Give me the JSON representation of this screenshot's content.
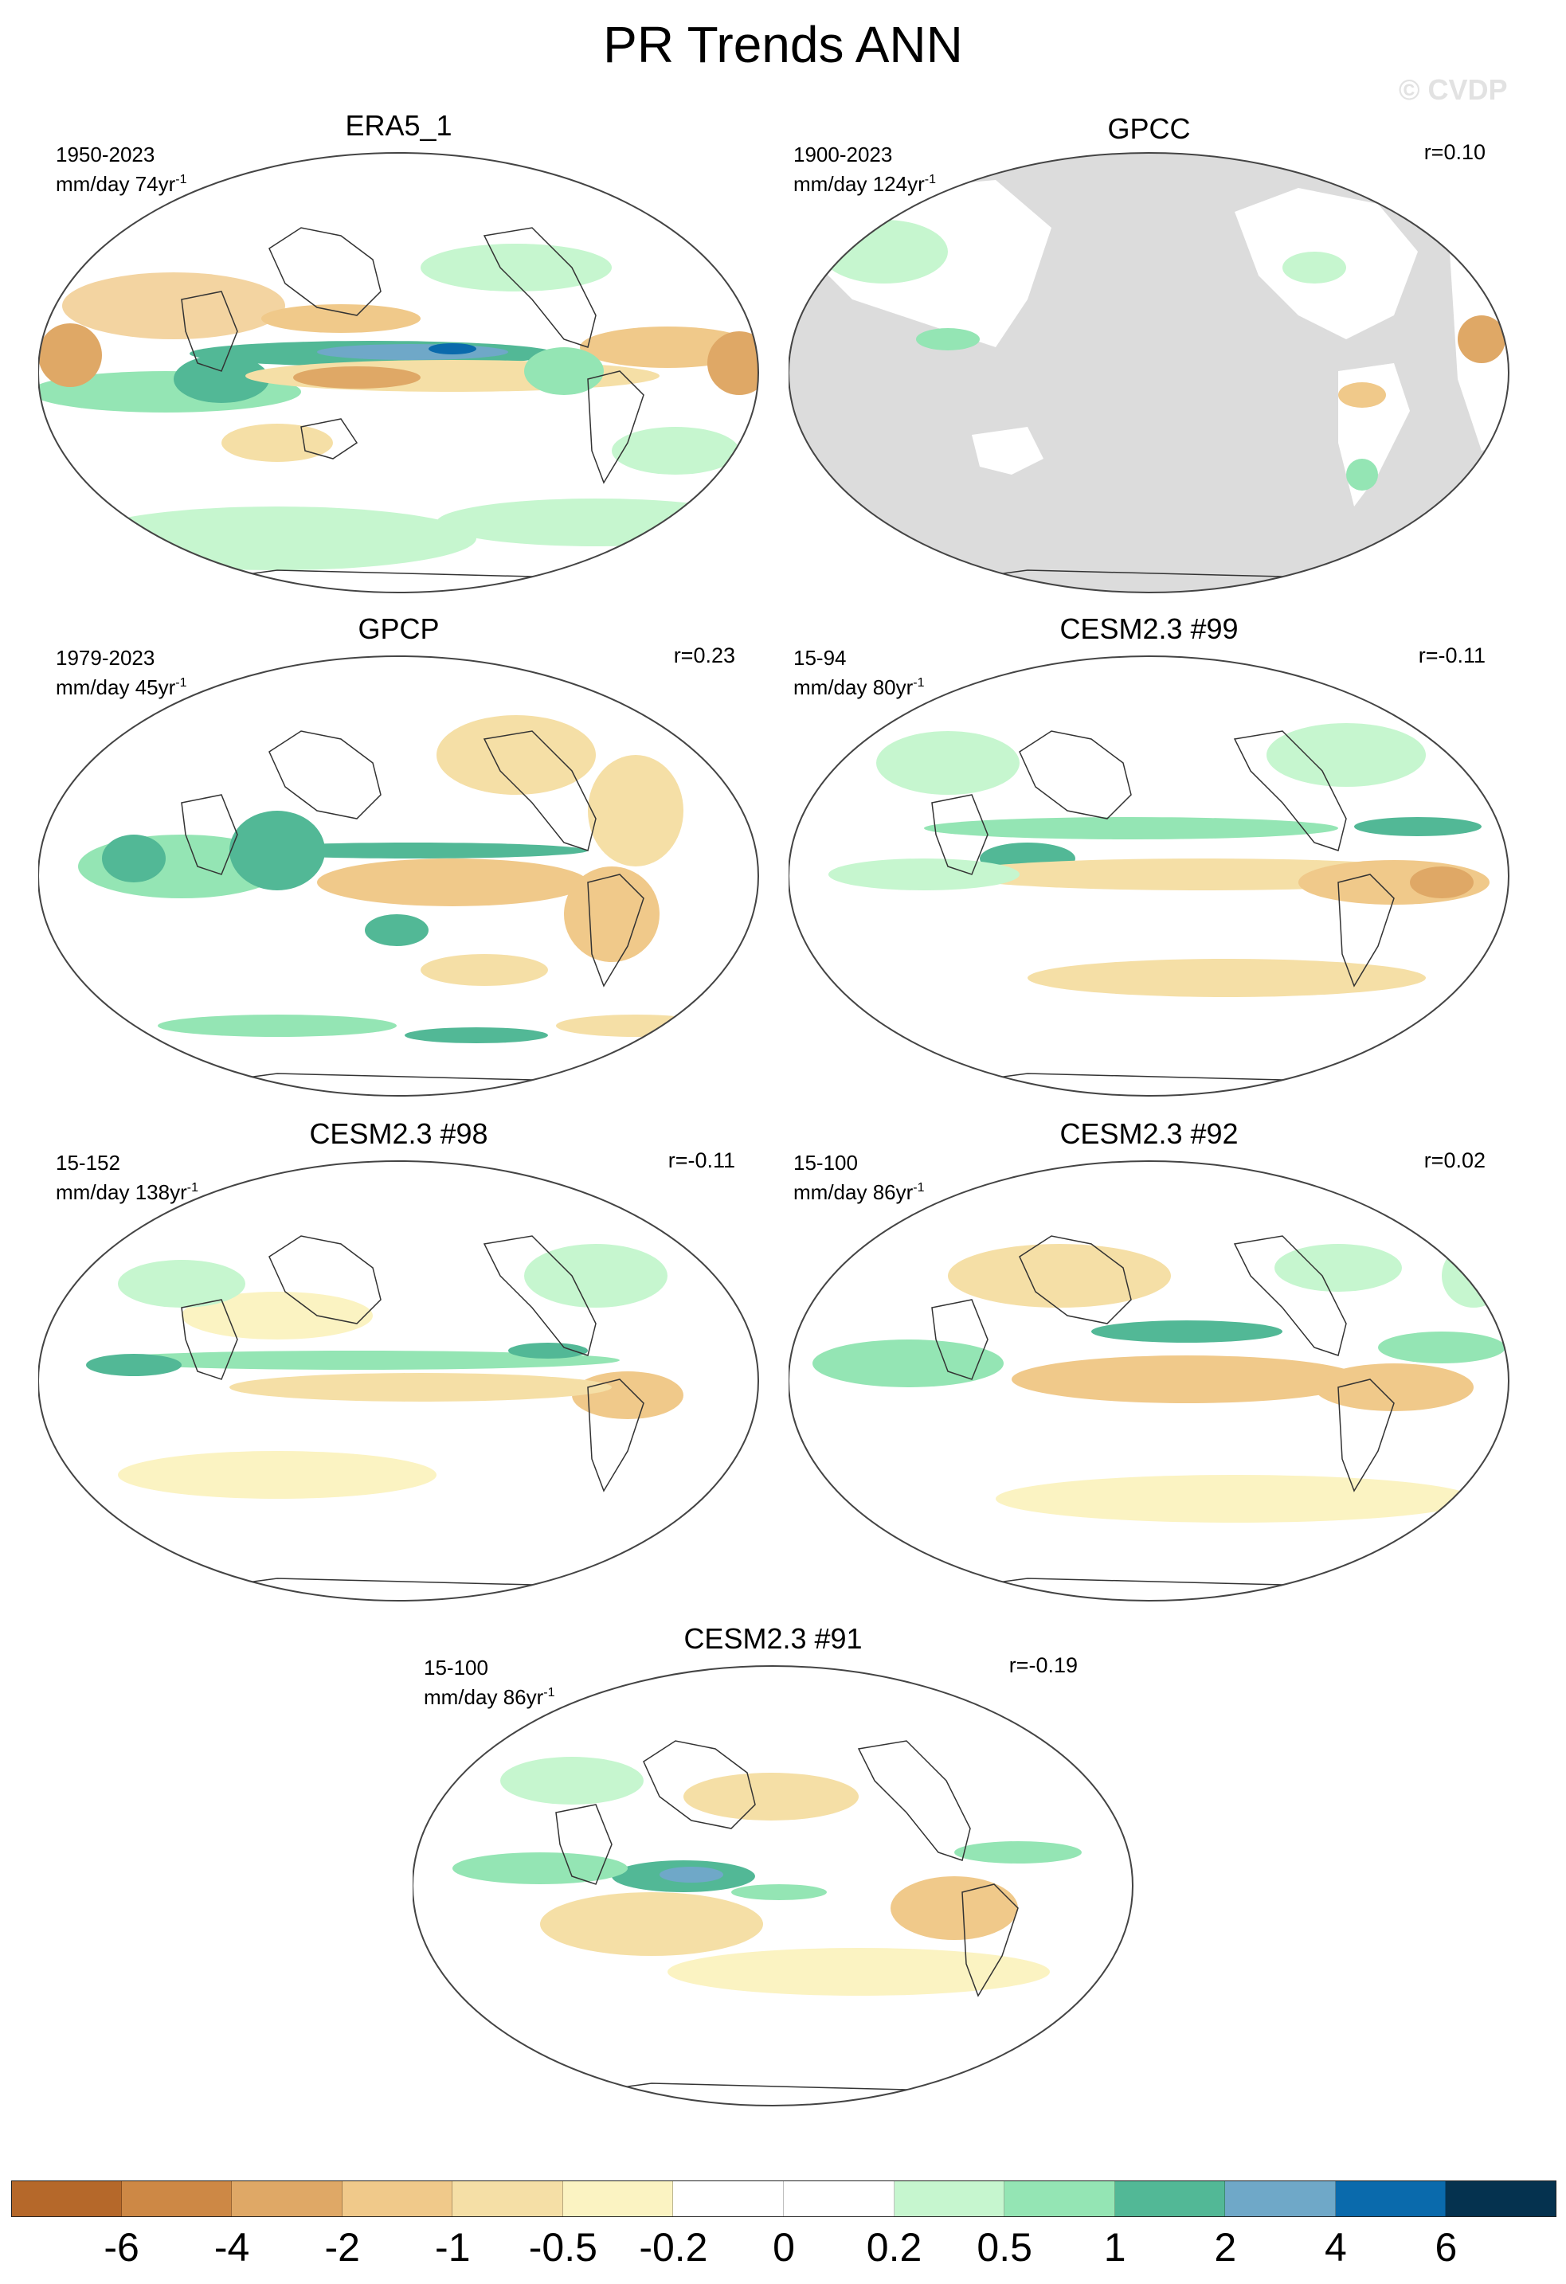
{
  "figure": {
    "title": "PR Trends ANN",
    "watermark": "© CVDP"
  },
  "panels": [
    {
      "title": "ERA5_1",
      "years": "1950-2023",
      "units": "mm/day",
      "trend_len": "74yr",
      "trend_exp": "-1",
      "corr": ""
    },
    {
      "title": "GPCC",
      "years": "1900-2023",
      "units": "mm/day",
      "trend_len": "124yr",
      "trend_exp": "-1",
      "corr": "r=0.10"
    },
    {
      "title": "GPCP",
      "years": "1979-2023",
      "units": "mm/day",
      "trend_len": "45yr",
      "trend_exp": "-1",
      "corr": "r=0.23"
    },
    {
      "title": "CESM2.3 #99",
      "years": "15-94",
      "units": "mm/day",
      "trend_len": "80yr",
      "trend_exp": "-1",
      "corr": "r=-0.11"
    },
    {
      "title": "CESM2.3 #98",
      "years": "15-152",
      "units": "mm/day",
      "trend_len": "138yr",
      "trend_exp": "-1",
      "corr": "r=-0.11"
    },
    {
      "title": "CESM2.3 #92",
      "years": "15-100",
      "units": "mm/day",
      "trend_len": "86yr",
      "trend_exp": "-1",
      "corr": "r=0.02"
    },
    {
      "title": "CESM2.3 #91",
      "years": "15-100",
      "units": "mm/day",
      "trend_len": "86yr",
      "trend_exp": "-1",
      "corr": "r=-0.19"
    }
  ],
  "colorbar": {
    "colors": [
      "#b5682a",
      "#cd8845",
      "#dfa866",
      "#f0c98a",
      "#f5dfa6",
      "#fbf3c2",
      "#ffffff",
      "#ffffff",
      "#c6f6cf",
      "#94e5b4",
      "#52b896",
      "#6fa8c8",
      "#0a6aac",
      "#05324f"
    ],
    "ticks": [
      "-6",
      "-4",
      "-2",
      "-1",
      "-0.5",
      "-0.2",
      "0",
      "0.2",
      "0.5",
      "1",
      "2",
      "4",
      "6"
    ]
  }
}
